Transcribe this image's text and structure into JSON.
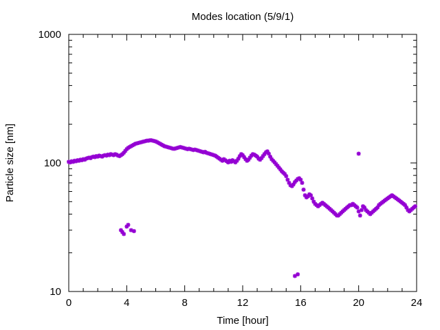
{
  "chart_data": {
    "type": "scatter",
    "title": "Modes location (5/9/1)",
    "xlabel": "Time [hour]",
    "ylabel": "Particle size [nm]",
    "xlim": [
      0,
      24
    ],
    "ylim": [
      10,
      1000
    ],
    "yscale": "log",
    "grid": false,
    "legend": "none",
    "marker_color": "#9400d3",
    "xticks": [
      0,
      4,
      8,
      12,
      16,
      20,
      24
    ],
    "yticks": [
      10,
      100,
      1000
    ],
    "series": [
      {
        "points": [
          [
            0.0,
            102
          ],
          [
            0.1,
            101
          ],
          [
            0.2,
            103
          ],
          [
            0.3,
            102
          ],
          [
            0.4,
            104
          ],
          [
            0.5,
            103
          ],
          [
            0.6,
            105
          ],
          [
            0.7,
            104
          ],
          [
            0.8,
            106
          ],
          [
            0.9,
            105
          ],
          [
            1.0,
            107
          ],
          [
            1.1,
            106
          ],
          [
            1.2,
            108
          ],
          [
            1.3,
            109
          ],
          [
            1.4,
            110
          ],
          [
            1.5,
            109
          ],
          [
            1.6,
            111
          ],
          [
            1.7,
            112
          ],
          [
            1.8,
            111
          ],
          [
            1.9,
            113
          ],
          [
            2.0,
            112
          ],
          [
            2.1,
            114
          ],
          [
            2.2,
            113
          ],
          [
            2.3,
            112
          ],
          [
            2.4,
            114
          ],
          [
            2.5,
            115
          ],
          [
            2.6,
            114
          ],
          [
            2.7,
            116
          ],
          [
            2.8,
            115
          ],
          [
            2.9,
            117
          ],
          [
            3.0,
            116
          ],
          [
            3.1,
            115
          ],
          [
            3.2,
            117
          ],
          [
            3.3,
            116
          ],
          [
            3.4,
            114
          ],
          [
            3.5,
            113
          ],
          [
            3.6,
            115
          ],
          [
            3.7,
            117
          ],
          [
            3.8,
            120
          ],
          [
            3.9,
            124
          ],
          [
            4.0,
            128
          ],
          [
            4.1,
            131
          ],
          [
            4.2,
            133
          ],
          [
            4.3,
            135
          ],
          [
            4.4,
            137
          ],
          [
            4.5,
            139
          ],
          [
            4.6,
            141
          ],
          [
            4.7,
            142
          ],
          [
            4.8,
            143
          ],
          [
            4.9,
            144
          ],
          [
            5.0,
            145
          ],
          [
            5.1,
            146
          ],
          [
            5.2,
            147
          ],
          [
            5.3,
            148
          ],
          [
            5.4,
            149
          ],
          [
            5.5,
            149
          ],
          [
            5.6,
            150
          ],
          [
            5.7,
            150
          ],
          [
            5.8,
            149
          ],
          [
            5.9,
            148
          ],
          [
            6.0,
            147
          ],
          [
            6.1,
            145
          ],
          [
            6.2,
            143
          ],
          [
            6.3,
            141
          ],
          [
            6.4,
            139
          ],
          [
            6.5,
            137
          ],
          [
            6.6,
            135
          ],
          [
            6.7,
            134
          ],
          [
            6.8,
            133
          ],
          [
            6.9,
            132
          ],
          [
            7.0,
            131
          ],
          [
            7.1,
            130
          ],
          [
            7.2,
            129
          ],
          [
            7.3,
            129
          ],
          [
            7.4,
            130
          ],
          [
            7.5,
            131
          ],
          [
            7.6,
            132
          ],
          [
            7.7,
            133
          ],
          [
            7.8,
            132
          ],
          [
            7.9,
            131
          ],
          [
            8.0,
            130
          ],
          [
            8.1,
            129
          ],
          [
            8.2,
            128
          ],
          [
            8.3,
            129
          ],
          [
            8.4,
            128
          ],
          [
            8.5,
            127
          ],
          [
            8.6,
            126
          ],
          [
            8.7,
            127
          ],
          [
            8.8,
            126
          ],
          [
            8.9,
            125
          ],
          [
            9.0,
            124
          ],
          [
            9.1,
            123
          ],
          [
            9.2,
            122
          ],
          [
            9.3,
            121
          ],
          [
            9.4,
            122
          ],
          [
            9.5,
            120
          ],
          [
            9.6,
            119
          ],
          [
            9.7,
            118
          ],
          [
            9.8,
            117
          ],
          [
            9.9,
            116
          ],
          [
            10.0,
            115
          ],
          [
            10.1,
            114
          ],
          [
            10.2,
            112
          ],
          [
            10.3,
            110
          ],
          [
            10.4,
            108
          ],
          [
            10.5,
            106
          ],
          [
            10.6,
            104
          ],
          [
            10.7,
            107
          ],
          [
            10.8,
            105
          ],
          [
            10.9,
            103
          ],
          [
            11.0,
            101
          ],
          [
            11.1,
            104
          ],
          [
            11.2,
            102
          ],
          [
            11.3,
            105
          ],
          [
            11.4,
            103
          ],
          [
            11.5,
            101
          ],
          [
            11.6,
            104
          ],
          [
            11.7,
            108
          ],
          [
            11.8,
            113
          ],
          [
            11.9,
            117
          ],
          [
            12.0,
            115
          ],
          [
            12.1,
            111
          ],
          [
            12.2,
            107
          ],
          [
            12.3,
            104
          ],
          [
            12.4,
            106
          ],
          [
            12.5,
            110
          ],
          [
            12.6,
            114
          ],
          [
            12.7,
            117
          ],
          [
            12.8,
            116
          ],
          [
            12.9,
            114
          ],
          [
            13.0,
            112
          ],
          [
            13.1,
            108
          ],
          [
            13.2,
            106
          ],
          [
            13.3,
            109
          ],
          [
            13.4,
            113
          ],
          [
            13.5,
            117
          ],
          [
            13.6,
            121
          ],
          [
            13.7,
            123
          ],
          [
            13.8,
            118
          ],
          [
            13.9,
            112
          ],
          [
            14.0,
            107
          ],
          [
            14.1,
            104
          ],
          [
            14.2,
            101
          ],
          [
            14.3,
            98
          ],
          [
            14.4,
            95
          ],
          [
            14.5,
            92
          ],
          [
            14.6,
            89
          ],
          [
            14.7,
            86
          ],
          [
            14.8,
            84
          ],
          [
            14.9,
            82
          ],
          [
            15.0,
            79
          ],
          [
            15.1,
            74
          ],
          [
            15.2,
            70
          ],
          [
            15.3,
            67
          ],
          [
            15.4,
            66
          ],
          [
            15.5,
            68
          ],
          [
            15.6,
            71
          ],
          [
            15.7,
            73
          ],
          [
            15.8,
            75
          ],
          [
            15.9,
            76
          ],
          [
            16.0,
            74
          ],
          [
            16.1,
            70
          ],
          [
            16.2,
            62
          ],
          [
            16.3,
            56
          ],
          [
            16.4,
            54
          ],
          [
            16.5,
            55
          ],
          [
            16.6,
            57
          ],
          [
            16.7,
            56
          ],
          [
            16.8,
            53
          ],
          [
            16.9,
            50
          ],
          [
            17.0,
            48
          ],
          [
            17.1,
            47
          ],
          [
            17.2,
            46
          ],
          [
            17.3,
            47
          ],
          [
            17.4,
            48
          ],
          [
            17.5,
            49
          ],
          [
            17.6,
            48
          ],
          [
            17.7,
            47
          ],
          [
            17.8,
            46
          ],
          [
            17.9,
            45
          ],
          [
            18.0,
            44
          ],
          [
            18.1,
            43
          ],
          [
            18.2,
            42
          ],
          [
            18.3,
            41
          ],
          [
            18.4,
            40
          ],
          [
            18.5,
            39
          ],
          [
            18.6,
            39
          ],
          [
            18.7,
            40
          ],
          [
            18.8,
            41
          ],
          [
            18.9,
            42
          ],
          [
            19.0,
            43
          ],
          [
            19.1,
            44
          ],
          [
            19.2,
            45
          ],
          [
            19.3,
            46
          ],
          [
            19.4,
            47
          ],
          [
            19.5,
            47
          ],
          [
            19.6,
            48
          ],
          [
            19.7,
            47
          ],
          [
            19.8,
            46
          ],
          [
            19.9,
            45
          ],
          [
            20.0,
            42
          ],
          [
            20.1,
            39
          ],
          [
            20.2,
            43
          ],
          [
            20.3,
            46
          ],
          [
            20.4,
            45
          ],
          [
            20.5,
            43
          ],
          [
            20.6,
            42
          ],
          [
            20.7,
            41
          ],
          [
            20.8,
            40
          ],
          [
            20.9,
            41
          ],
          [
            21.0,
            42
          ],
          [
            21.1,
            43
          ],
          [
            21.2,
            44
          ],
          [
            21.3,
            45
          ],
          [
            21.4,
            47
          ],
          [
            21.5,
            48
          ],
          [
            21.6,
            49
          ],
          [
            21.7,
            50
          ],
          [
            21.8,
            51
          ],
          [
            21.9,
            52
          ],
          [
            22.0,
            53
          ],
          [
            22.1,
            54
          ],
          [
            22.2,
            55
          ],
          [
            22.3,
            56
          ],
          [
            22.4,
            55
          ],
          [
            22.5,
            54
          ],
          [
            22.6,
            53
          ],
          [
            22.7,
            52
          ],
          [
            22.8,
            51
          ],
          [
            22.9,
            50
          ],
          [
            23.0,
            49
          ],
          [
            23.1,
            48
          ],
          [
            23.2,
            47
          ],
          [
            23.3,
            45
          ],
          [
            23.4,
            43
          ],
          [
            23.5,
            42
          ],
          [
            23.6,
            43
          ],
          [
            23.7,
            44
          ],
          [
            23.8,
            45
          ],
          [
            23.9,
            46
          ],
          [
            3.6,
            30
          ],
          [
            3.7,
            29
          ],
          [
            3.8,
            28
          ],
          [
            4.0,
            32
          ],
          [
            4.1,
            33
          ],
          [
            4.3,
            30
          ],
          [
            4.5,
            29.5
          ],
          [
            15.6,
            13.2
          ],
          [
            15.8,
            13.6
          ],
          [
            20.0,
            118
          ]
        ]
      }
    ]
  }
}
